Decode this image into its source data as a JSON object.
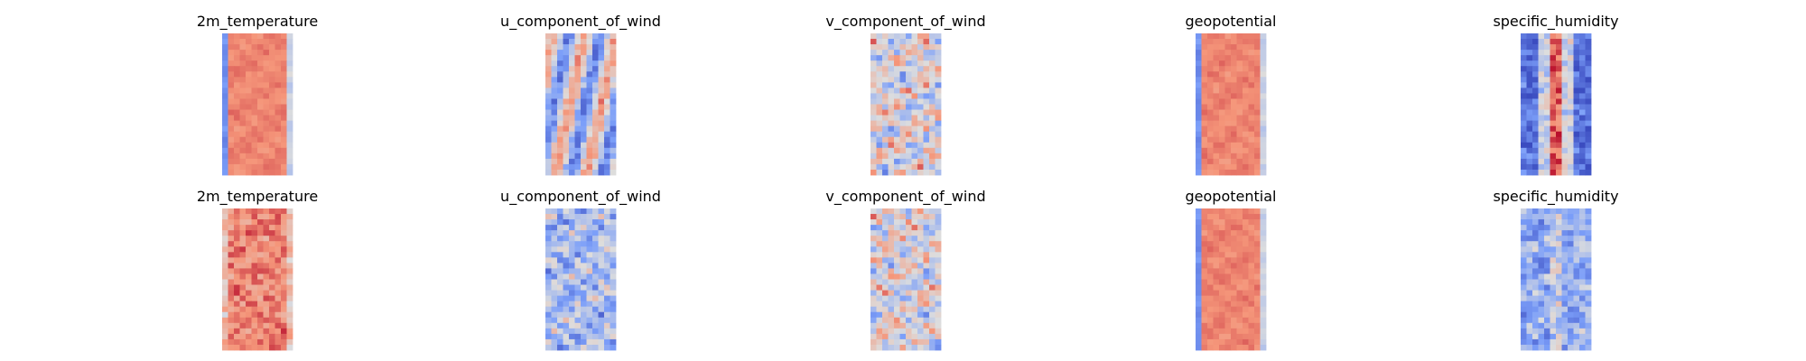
{
  "figure": {
    "rows": [
      {
        "panels": [
          {
            "title": "2m_temperature",
            "colormap": "coolwarm",
            "pattern": "smooth-warm"
          },
          {
            "title": "u_component_of_wind",
            "colormap": "coolwarm",
            "pattern": "bands"
          },
          {
            "title": "v_component_of_wind",
            "colormap": "coolwarm",
            "pattern": "mottled"
          },
          {
            "title": "geopotential",
            "colormap": "coolwarm",
            "pattern": "smooth-warm"
          },
          {
            "title": "specific_humidity",
            "colormap": "coolwarm",
            "pattern": "ridge-cool"
          }
        ]
      },
      {
        "panels": [
          {
            "title": "2m_temperature",
            "colormap": "coolwarm",
            "pattern": "noisy-warm"
          },
          {
            "title": "u_component_of_wind",
            "colormap": "coolwarm",
            "pattern": "mottled-cool"
          },
          {
            "title": "v_component_of_wind",
            "colormap": "coolwarm",
            "pattern": "mottled"
          },
          {
            "title": "geopotential",
            "colormap": "coolwarm",
            "pattern": "smooth-warm"
          },
          {
            "title": "specific_humidity",
            "colormap": "coolwarm",
            "pattern": "noisy-cool"
          }
        ]
      }
    ],
    "colors": {
      "cool": "#3b4cc0",
      "neutral": "#dddddd",
      "warm": "#b40426"
    }
  },
  "chart_data": {
    "type": "heatmap",
    "colormap": "coolwarm",
    "axes": "off",
    "layout": "2 rows x 5 columns",
    "panels": [
      "2m_temperature",
      "u_component_of_wind",
      "v_component_of_wind",
      "geopotential",
      "specific_humidity",
      "2m_temperature",
      "u_component_of_wind",
      "v_component_of_wind",
      "geopotential",
      "specific_humidity"
    ]
  }
}
